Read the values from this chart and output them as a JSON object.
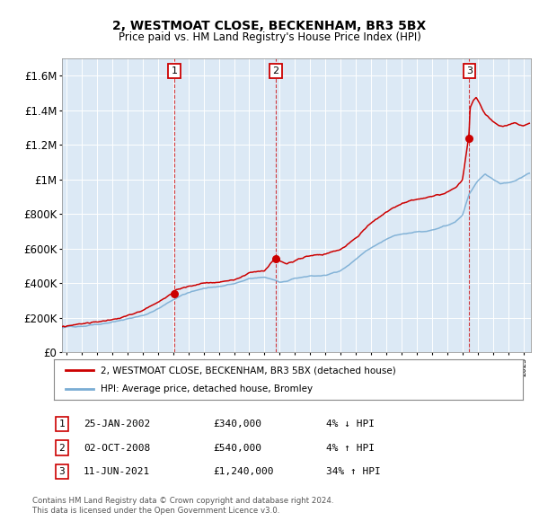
{
  "title": "2, WESTMOAT CLOSE, BECKENHAM, BR3 5BX",
  "subtitle": "Price paid vs. HM Land Registry's House Price Index (HPI)",
  "legend_line1": "2, WESTMOAT CLOSE, BECKENHAM, BR3 5BX (detached house)",
  "legend_line2": "HPI: Average price, detached house, Bromley",
  "transactions": [
    {
      "num": 1,
      "date": "25-JAN-2002",
      "price": 340000,
      "pct": "4%",
      "dir": "↓",
      "year_x": 2002.07
    },
    {
      "num": 2,
      "date": "02-OCT-2008",
      "price": 540000,
      "pct": "4%",
      "dir": "↑",
      "year_x": 2008.75
    },
    {
      "num": 3,
      "date": "11-JUN-2021",
      "price": 1240000,
      "pct": "34%",
      "dir": "↑",
      "year_x": 2021.44
    }
  ],
  "footer1": "Contains HM Land Registry data © Crown copyright and database right 2024.",
  "footer2": "This data is licensed under the Open Government Licence v3.0.",
  "plot_bg_color": "#dce9f5",
  "outer_bg_color": "#ffffff",
  "red_color": "#cc0000",
  "blue_color": "#7aadd4",
  "grid_color": "#c8d8e8",
  "ylim": [
    0,
    1700000
  ],
  "xlim_start": 1994.7,
  "xlim_end": 2025.5,
  "yticks": [
    0,
    200000,
    400000,
    600000,
    800000,
    1000000,
    1200000,
    1400000,
    1600000
  ],
  "xticks": [
    1995,
    1996,
    1997,
    1998,
    1999,
    2000,
    2001,
    2002,
    2003,
    2004,
    2005,
    2006,
    2007,
    2008,
    2009,
    2010,
    2011,
    2012,
    2013,
    2014,
    2015,
    2016,
    2017,
    2018,
    2019,
    2020,
    2021,
    2022,
    2023,
    2024,
    2025
  ]
}
